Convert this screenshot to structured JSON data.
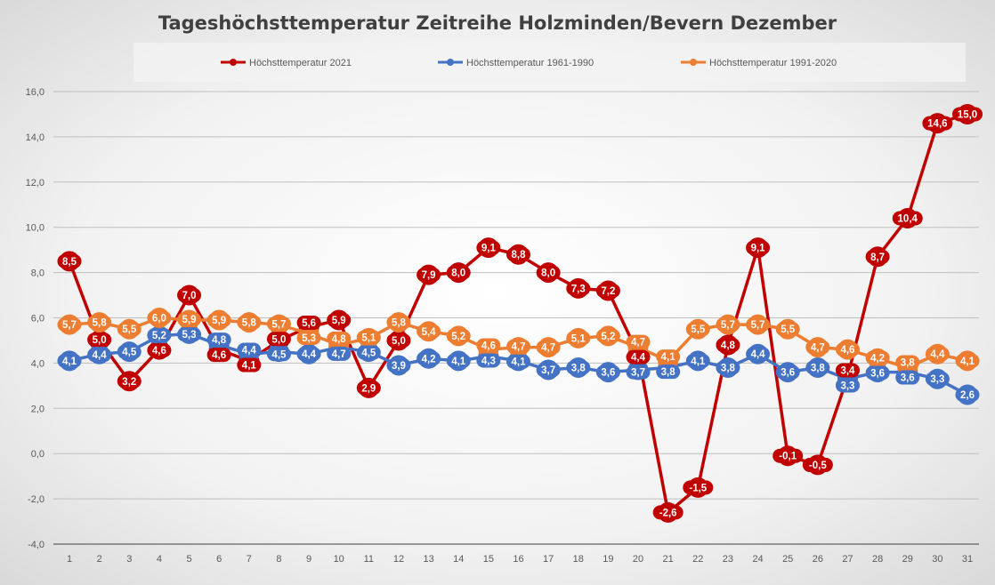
{
  "chart_data": {
    "type": "line",
    "title": "Tageshöchsttemperatur Zeitreihe Holzminden/Bevern Dezember",
    "xlabel": "",
    "ylabel": "",
    "x": [
      1,
      2,
      3,
      4,
      5,
      6,
      7,
      8,
      9,
      10,
      11,
      12,
      13,
      14,
      15,
      16,
      17,
      18,
      19,
      20,
      21,
      22,
      23,
      24,
      25,
      26,
      27,
      28,
      29,
      30,
      31
    ],
    "ylim": [
      -4,
      16
    ],
    "yticks": [
      -4,
      -2,
      0,
      2,
      4,
      6,
      8,
      10,
      12,
      14,
      16
    ],
    "ytick_labels": [
      "-4,0",
      "-2,0",
      "0,0",
      "2,0",
      "4,0",
      "6,0",
      "8,0",
      "10,0",
      "12,0",
      "14,0",
      "16,0"
    ],
    "grid": true,
    "legend": "top",
    "series": [
      {
        "name": "Höchsttemperatur 2021",
        "color": "#c00000",
        "values": [
          8.5,
          5.0,
          3.2,
          4.6,
          7.0,
          4.6,
          4.1,
          5.0,
          5.6,
          5.9,
          2.9,
          5.0,
          7.9,
          8.0,
          9.1,
          8.8,
          8.0,
          7.3,
          7.2,
          4.4,
          -2.6,
          -1.5,
          4.8,
          9.1,
          -0.1,
          -0.5,
          3.4,
          8.7,
          10.4,
          14.6,
          15.0
        ]
      },
      {
        "name": "Höchsttemperatur 1961-1990",
        "color": "#4472c4",
        "values": [
          4.1,
          4.4,
          4.5,
          5.2,
          5.3,
          4.8,
          4.4,
          4.5,
          4.4,
          4.7,
          4.5,
          3.9,
          4.2,
          4.1,
          4.3,
          4.1,
          3.7,
          3.8,
          3.6,
          3.7,
          3.8,
          4.1,
          3.8,
          4.4,
          3.6,
          3.8,
          3.3,
          3.6,
          3.6,
          3.3,
          2.6
        ]
      },
      {
        "name": "Höchsttemperatur 1991-2020",
        "color": "#ed7d31",
        "values": [
          5.7,
          5.8,
          5.5,
          6.0,
          5.9,
          5.9,
          5.8,
          5.7,
          5.3,
          4.8,
          5.1,
          5.8,
          5.4,
          5.2,
          4.6,
          4.7,
          4.7,
          5.1,
          5.2,
          4.7,
          4.1,
          5.5,
          5.7,
          5.7,
          5.5,
          4.7,
          4.6,
          4.2,
          3.8,
          4.4,
          4.1
        ]
      }
    ],
    "draw_order": [
      0,
      1,
      2
    ]
  }
}
